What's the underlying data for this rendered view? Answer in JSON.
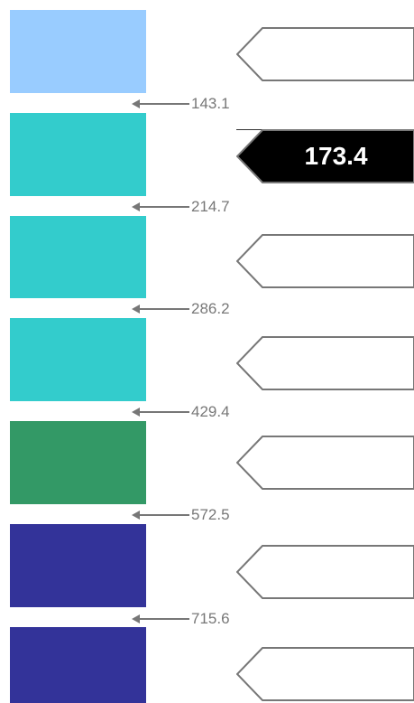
{
  "legend": {
    "bins": [
      {
        "color": "#99ccff",
        "active": false
      },
      {
        "color": "#33cccc",
        "active": true
      },
      {
        "color": "#33cccc",
        "active": false
      },
      {
        "color": "#33cccc",
        "active": false
      },
      {
        "color": "#339966",
        "active": false
      },
      {
        "color": "#333399",
        "active": false
      },
      {
        "color": "#333399",
        "active": false
      }
    ],
    "thresholds": [
      "143.1",
      "214.7",
      "286.2",
      "429.4",
      "572.5",
      "715.6"
    ],
    "current_value": "173.4",
    "pointer_colors": {
      "active_fill": "#000000",
      "inactive_fill": "#ffffff",
      "stroke": "#777777"
    }
  }
}
